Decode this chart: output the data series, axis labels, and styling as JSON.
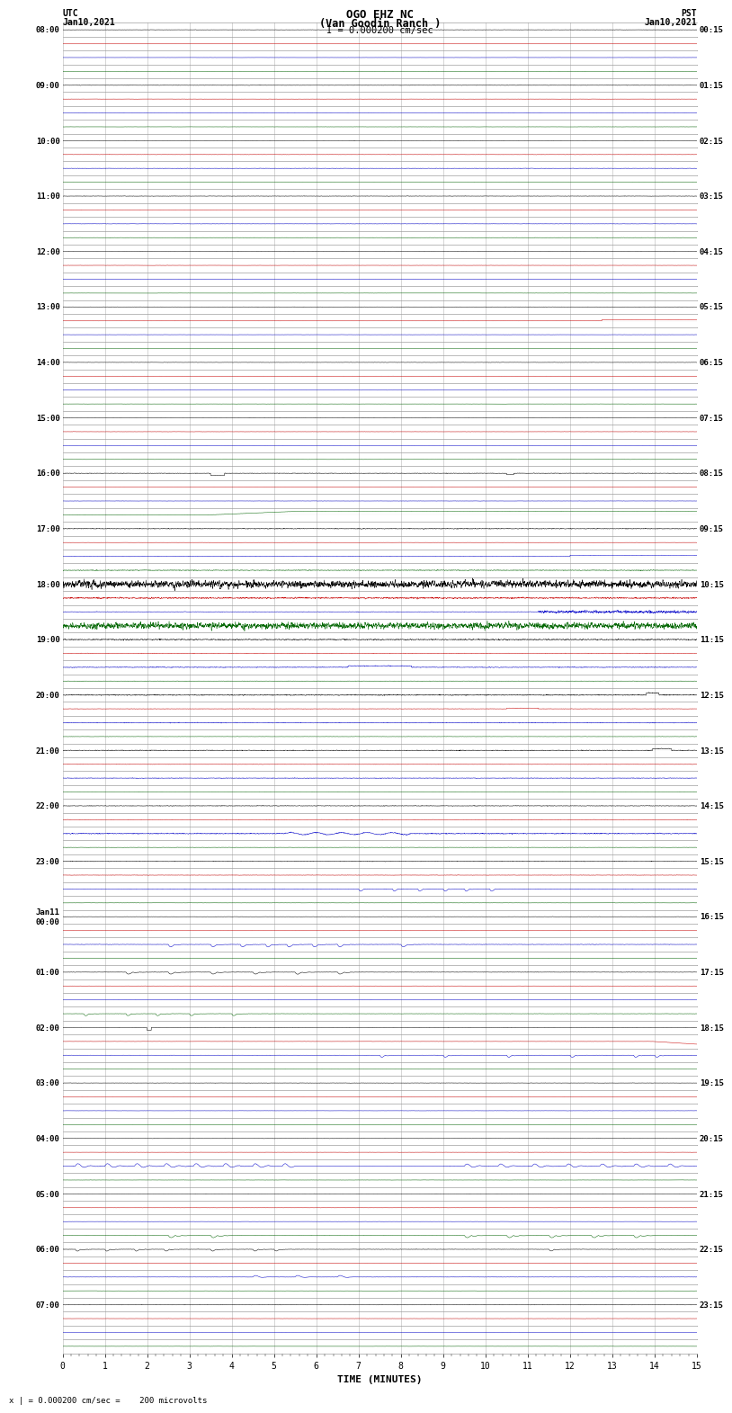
{
  "title_line1": "OGO EHZ NC",
  "title_line2": "(Van Goodin Ranch )",
  "title_line3": "I = 0.000200 cm/sec",
  "left_header_line1": "UTC",
  "left_header_line2": "Jan10,2021",
  "right_header_line1": "PST",
  "right_header_line2": "Jan10,2021",
  "xlabel": "TIME (MINUTES)",
  "scale_label": "x | = 0.000200 cm/sec =    200 microvolts",
  "xlim": [
    0,
    15
  ],
  "bg_color": "#ffffff",
  "grid_color": "#888888",
  "colors": [
    "#000000",
    "#cc0000",
    "#0000cc",
    "#006600"
  ],
  "utc_labels": [
    "08:00",
    "",
    "",
    "",
    "09:00",
    "",
    "",
    "",
    "10:00",
    "",
    "",
    "",
    "11:00",
    "",
    "",
    "",
    "12:00",
    "",
    "",
    "",
    "13:00",
    "",
    "",
    "",
    "14:00",
    "",
    "",
    "",
    "15:00",
    "",
    "",
    "",
    "16:00",
    "",
    "",
    "",
    "17:00",
    "",
    "",
    "",
    "18:00",
    "",
    "",
    "",
    "19:00",
    "",
    "",
    "",
    "20:00",
    "",
    "",
    "",
    "21:00",
    "",
    "",
    "",
    "22:00",
    "",
    "",
    "",
    "23:00",
    "",
    "",
    "",
    "Jan11\n00:00",
    "",
    "",
    "",
    "01:00",
    "",
    "",
    "",
    "02:00",
    "",
    "",
    "",
    "03:00",
    "",
    "",
    "",
    "04:00",
    "",
    "",
    "",
    "05:00",
    "",
    "",
    "",
    "06:00",
    "",
    "",
    "",
    "07:00",
    "",
    "",
    ""
  ],
  "pst_labels": [
    "00:15",
    "",
    "",
    "",
    "01:15",
    "",
    "",
    "",
    "02:15",
    "",
    "",
    "",
    "03:15",
    "",
    "",
    "",
    "04:15",
    "",
    "",
    "",
    "05:15",
    "",
    "",
    "",
    "06:15",
    "",
    "",
    "",
    "07:15",
    "",
    "",
    "",
    "08:15",
    "",
    "",
    "",
    "09:15",
    "",
    "",
    "",
    "10:15",
    "",
    "",
    "",
    "11:15",
    "",
    "",
    "",
    "12:15",
    "",
    "",
    "",
    "13:15",
    "",
    "",
    "",
    "14:15",
    "",
    "",
    "",
    "15:15",
    "",
    "",
    "",
    "16:15",
    "",
    "",
    "",
    "17:15",
    "",
    "",
    "",
    "18:15",
    "",
    "",
    "",
    "19:15",
    "",
    "",
    "",
    "20:15",
    "",
    "",
    "",
    "21:15",
    "",
    "",
    "",
    "22:15",
    "",
    "",
    "",
    "23:15",
    "",
    "",
    ""
  ]
}
